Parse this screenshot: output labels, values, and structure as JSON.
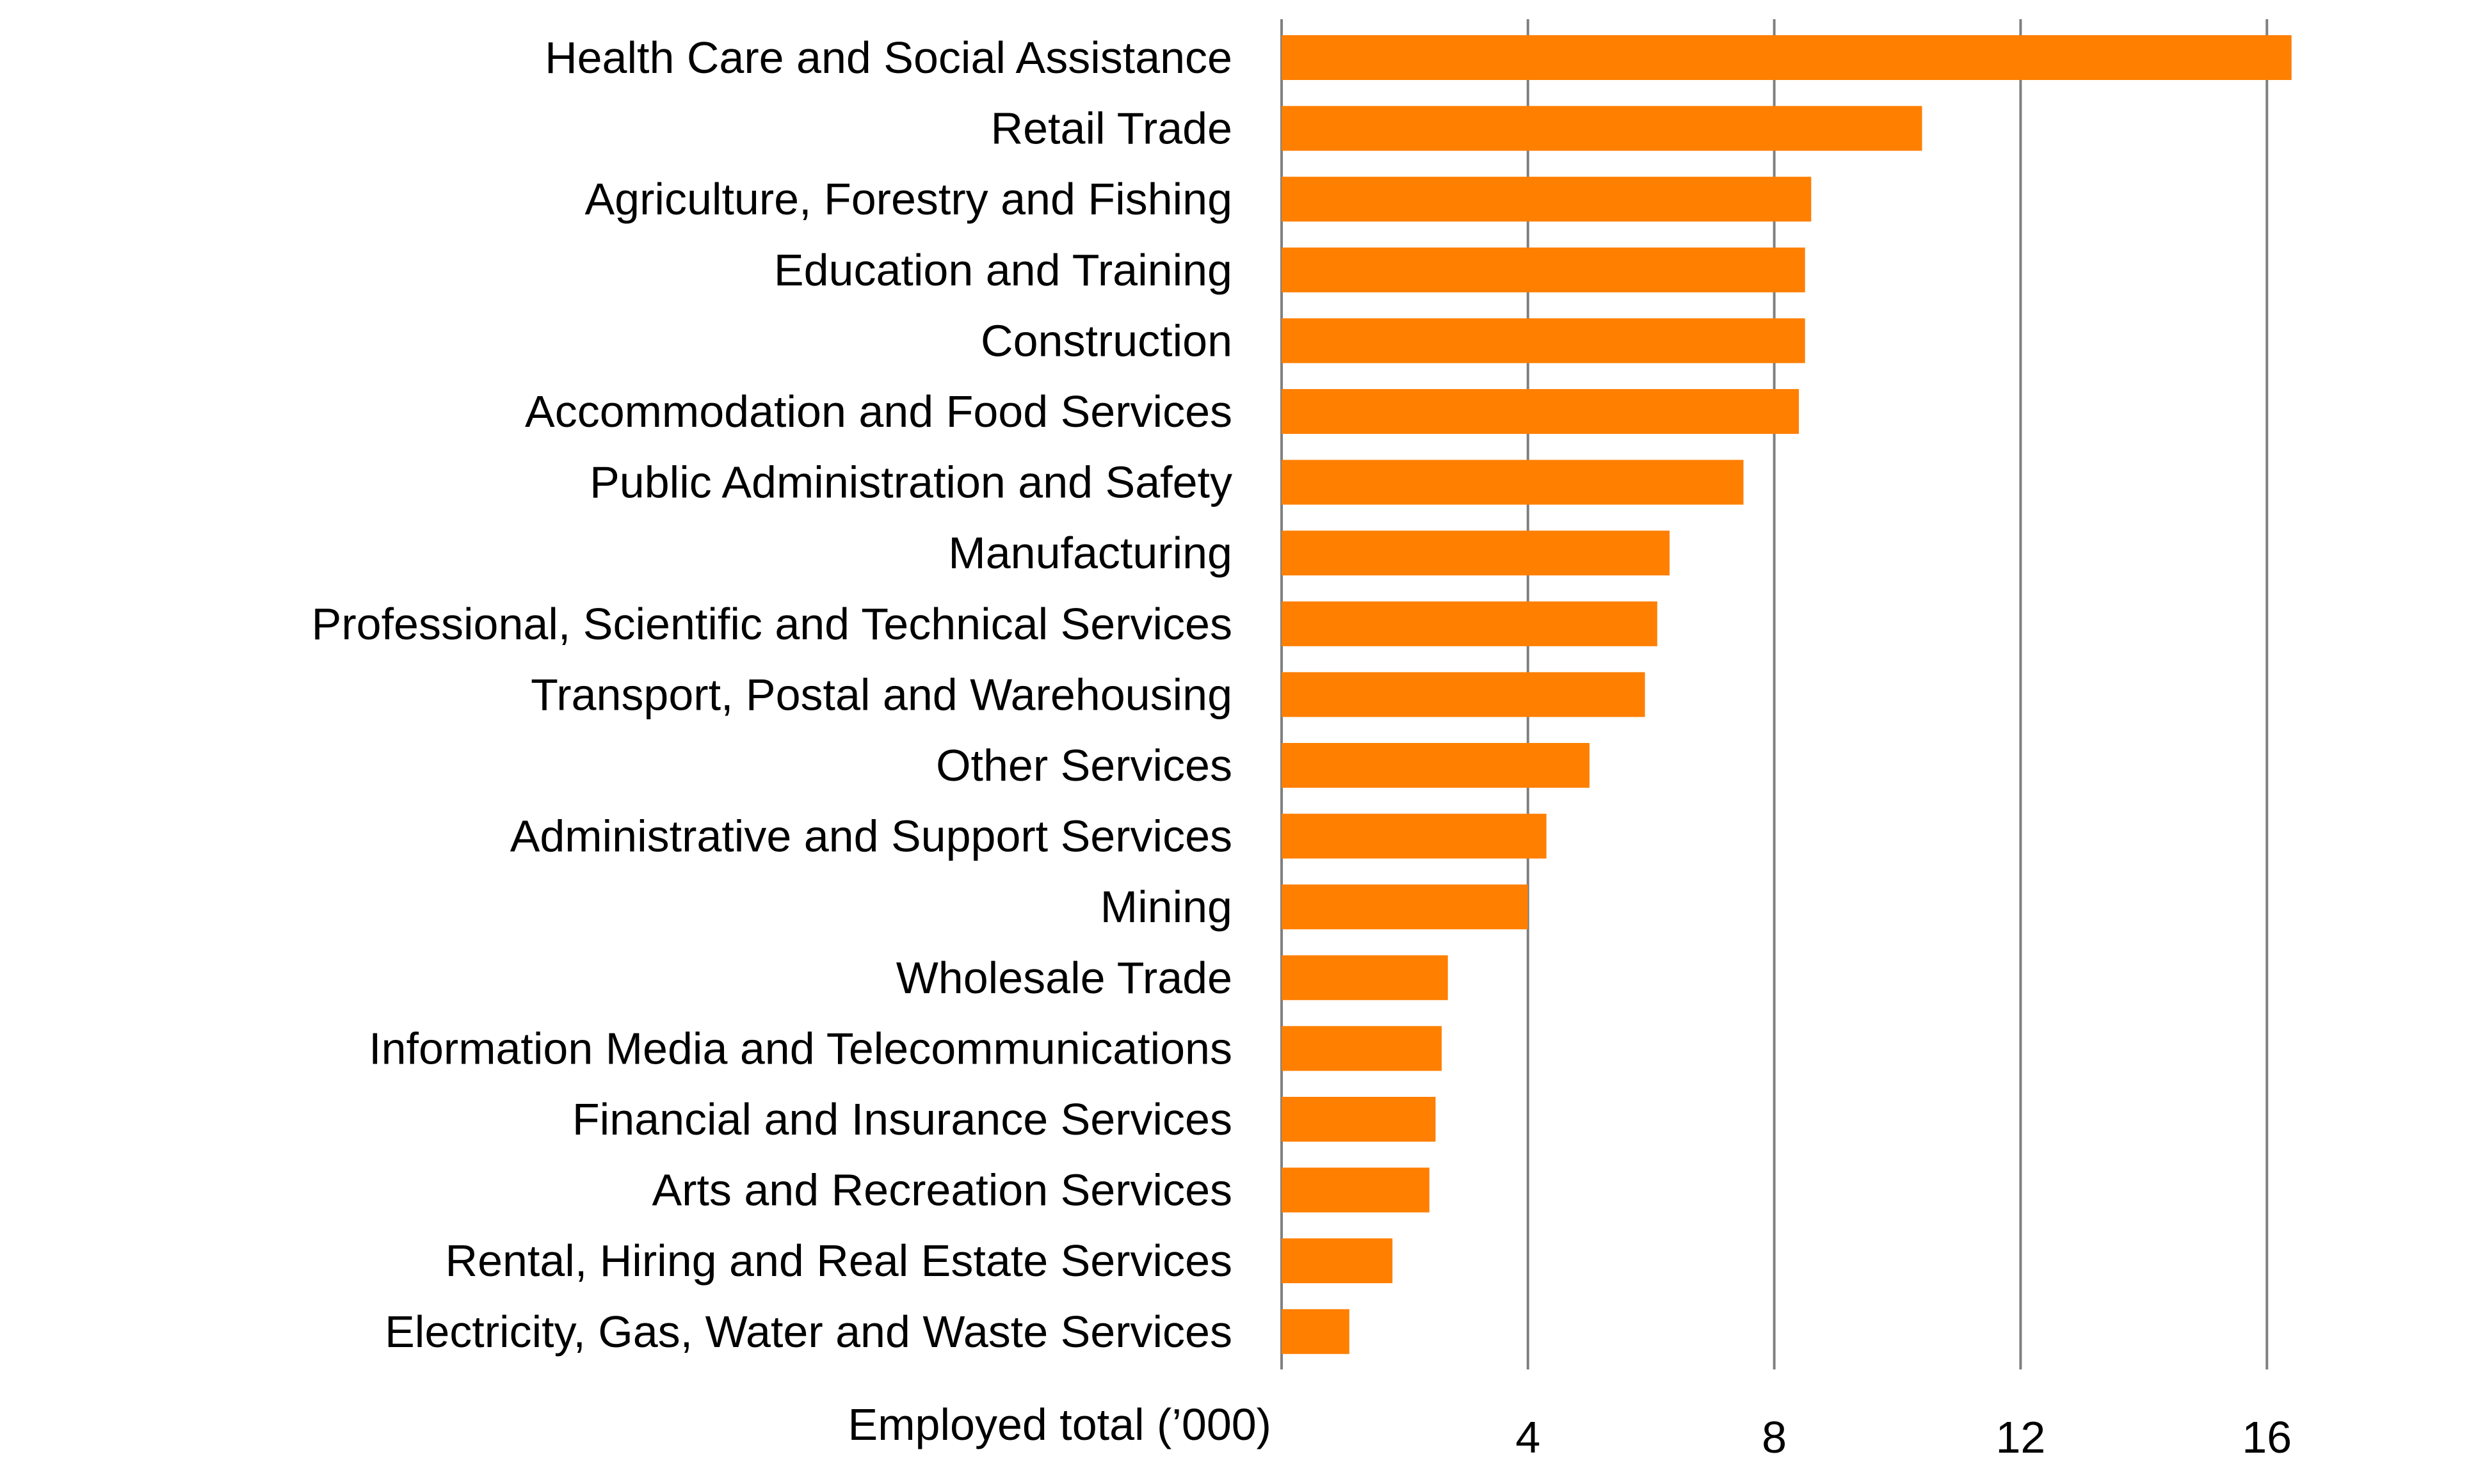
{
  "chart_data": {
    "type": "bar",
    "orientation": "horizontal",
    "categories": [
      "Health Care and Social Assistance",
      "Retail Trade",
      "Agriculture, Forestry and Fishing",
      "Education and Training",
      "Construction",
      "Accommodation and Food Services",
      "Public Administration and Safety",
      "Manufacturing",
      "Professional, Scientific and Technical Services",
      "Transport, Postal and Warehousing",
      "Other Services",
      "Administrative and Support Services",
      "Mining",
      "Wholesale Trade",
      "Information Media and Telecommunications",
      "Financial and Insurance Services",
      "Arts and Recreation Services",
      "Rental, Hiring and Real Estate Services",
      "Electricity, Gas, Water and Waste Services"
    ],
    "values": [
      16.4,
      10.4,
      8.6,
      8.5,
      8.5,
      8.4,
      7.5,
      6.3,
      6.1,
      5.9,
      5.0,
      4.3,
      4.0,
      2.7,
      2.6,
      2.5,
      2.4,
      1.8,
      1.1
    ],
    "xlabel": "Employed total (’000)",
    "xlim": [
      0,
      17
    ],
    "xticks": [
      4,
      8,
      12,
      16
    ],
    "grid": "vertical",
    "colors": {
      "bar": "#FF7F00",
      "grid": "#808080",
      "text": "#000000"
    }
  }
}
